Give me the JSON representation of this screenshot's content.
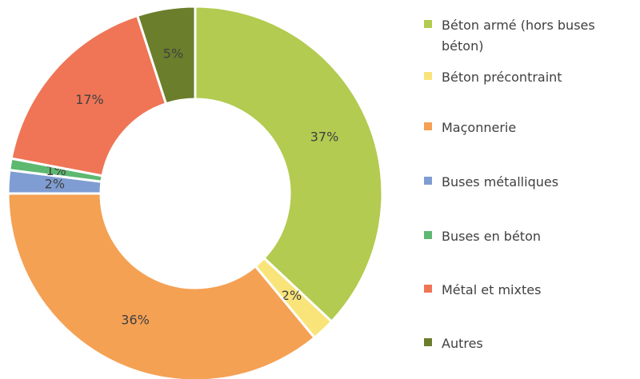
{
  "chart_data": {
    "type": "donut",
    "categories": [
      "Béton armé (hors buses béton)",
      "Béton précontraint",
      "Maçonnerie",
      "Buses métalliques",
      "Buses en béton",
      "Métal et mixtes",
      "Autres"
    ],
    "values": [
      37,
      2,
      36,
      2,
      1,
      17,
      5
    ],
    "value_labels": [
      "37%",
      "2%",
      "36%",
      "2%",
      "1%",
      "17%",
      "5%"
    ],
    "colors": [
      "#b2cb50",
      "#f9e47a",
      "#f4a154",
      "#7f9dd3",
      "#5db870",
      "#ef7556",
      "#6b7e2c"
    ],
    "legend": "right"
  }
}
